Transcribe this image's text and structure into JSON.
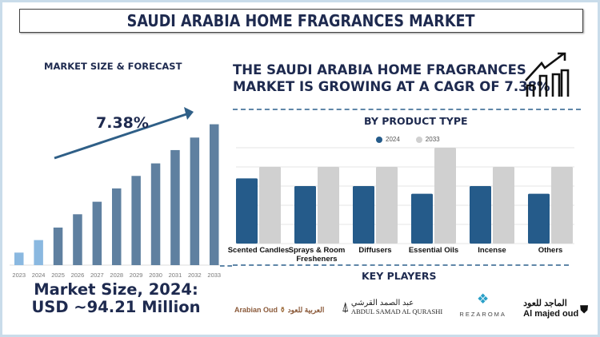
{
  "title": "SAUDI ARABIA HOME FRAGRANCES MARKET",
  "left": {
    "heading": "MARKET SIZE & FORECAST",
    "cagr_label": "7.38%",
    "market_size": "Market Size, 2024: USD ~94.21 Million"
  },
  "headline": "THE SAUDI ARABIA HOME FRAGRANCES MARKET IS GROWING AT A CAGR OF 7.38%",
  "trend_icon": "growth-chart-icon",
  "key_players": {
    "heading": "KEY PLAYERS",
    "logos": [
      "Arabian Oud العربية للعود",
      "عبد الصمد القرشي Abdul Samad Al Qurashi",
      "REZAROMA",
      "الماجد للعود Al majed oud"
    ]
  },
  "chart_data": [
    {
      "type": "bar",
      "title": "MARKET SIZE & FORECAST",
      "categories": [
        "2023",
        "2024",
        "2025",
        "2026",
        "2027",
        "2028",
        "2029",
        "2030",
        "2031",
        "2032",
        "2033"
      ],
      "values": [
        16,
        32,
        48,
        65,
        81,
        98,
        114,
        130,
        147,
        163,
        180
      ],
      "colors": {
        "historic": "#8ab8e0",
        "forecast": "#5f80a0"
      },
      "annotation": "7.38%",
      "ylim": [
        0,
        185
      ],
      "grid": false
    },
    {
      "type": "bar",
      "title": "BY PRODUCT TYPE",
      "categories": [
        "Scented Candles",
        "Sprays & Room Fresheners",
        "Diffusers",
        "Essential Oils",
        "Incense",
        "Others"
      ],
      "series": [
        {
          "name": "2024",
          "values": [
            3.4,
            3,
            3,
            2.6,
            3,
            2.6
          ],
          "color": "#255b8a"
        },
        {
          "name": "2033",
          "values": [
            4,
            4,
            4,
            5,
            4,
            4
          ],
          "color": "#d0d0d0"
        }
      ],
      "ylim": [
        0,
        5
      ],
      "grid": true,
      "legend": "top-center"
    }
  ]
}
